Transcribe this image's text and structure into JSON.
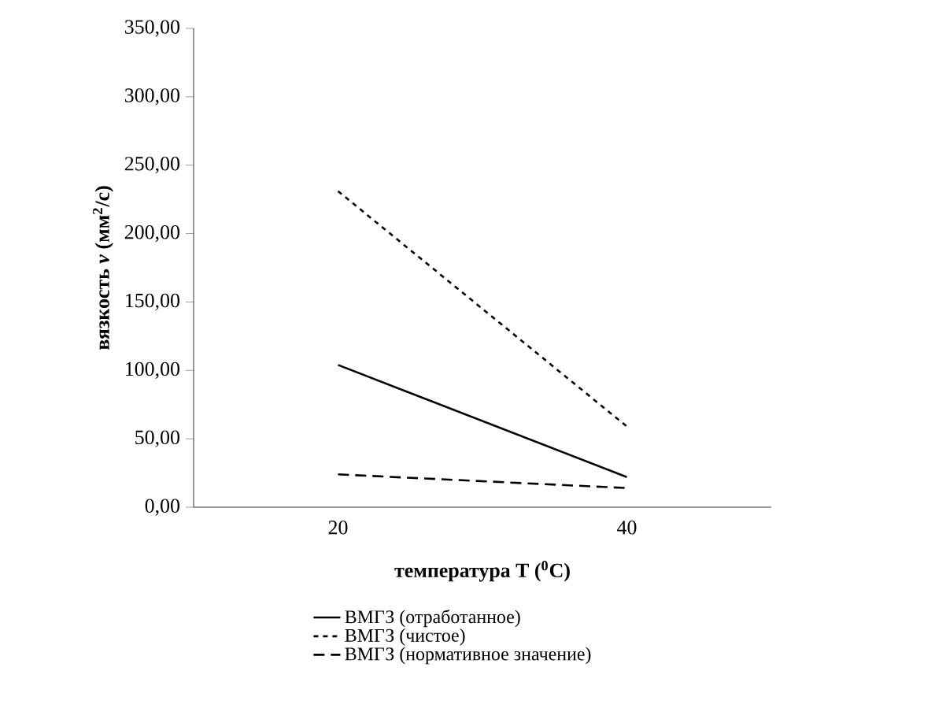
{
  "chart_data": {
    "type": "line",
    "xlabel": "температура T ($^{0}$C)",
    "ylabel": "вязкость *ν* (мм$^{2}$/с)",
    "categories": [
      "20",
      "40"
    ],
    "series": [
      {
        "name": "ВМГЗ (отработанное)",
        "color": "#000000",
        "line_style": "solid",
        "values": [
          104,
          22
        ]
      },
      {
        "name": "ВМГЗ (чистое)",
        "color": "#000000",
        "line_style": "dotted",
        "values": [
          231,
          59
        ]
      },
      {
        "name": "ВМГЗ (нормативное значение)",
        "color": "#000000",
        "line_style": "dashed",
        "values": [
          24,
          14
        ]
      }
    ],
    "ylim": [
      0,
      350
    ],
    "yticks": [
      {
        "value": 0,
        "label": "0,00"
      },
      {
        "value": 50,
        "label": "50,00"
      },
      {
        "value": 100,
        "label": "100,00"
      },
      {
        "value": 150,
        "label": "150,00"
      },
      {
        "value": 200,
        "label": "200,00"
      },
      {
        "value": 250,
        "label": "250,00"
      },
      {
        "value": 300,
        "label": "300,00"
      },
      {
        "value": 350,
        "label": "350,00"
      }
    ],
    "grid": false,
    "legend": "bottom",
    "marker": "none"
  }
}
